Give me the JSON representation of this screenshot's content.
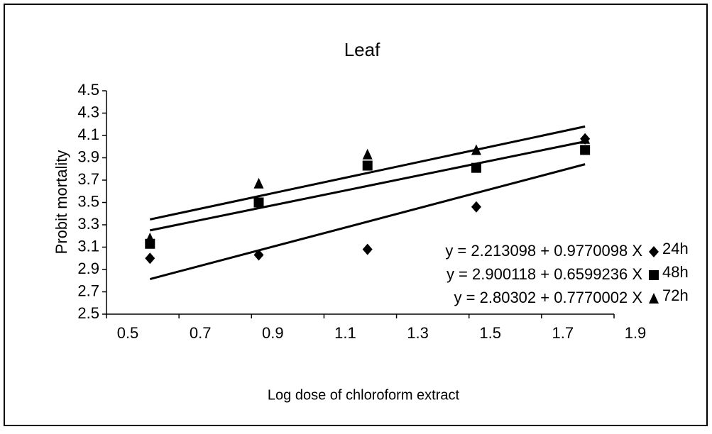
{
  "chart_data": {
    "type": "scatter",
    "title": "Leaf",
    "x_label": "Log dose of chloroform extract",
    "y_label": "Probit mortality",
    "xlim": [
      0.5,
      1.9
    ],
    "xticks": [
      0.5,
      0.7,
      0.9,
      1.1,
      1.3,
      1.5,
      1.7,
      1.9
    ],
    "ylim": [
      2.5,
      4.5
    ],
    "yticks": [
      2.5,
      2.7,
      2.9,
      3.1,
      3.3,
      3.5,
      3.7,
      3.9,
      4.1,
      4.3,
      4.5
    ],
    "trendline": true,
    "series": [
      {
        "name": "24h",
        "marker": "diamond",
        "color": "#000000",
        "equation": "y = 2.213098 + 0.9770098 X",
        "x": [
          0.62,
          0.92,
          1.22,
          1.52,
          1.82
        ],
        "values": [
          3.0,
          3.03,
          3.08,
          3.46,
          4.07
        ]
      },
      {
        "name": "48h",
        "marker": "square",
        "color": "#000000",
        "equation": "y = 2.900118 + 0.6599236 X",
        "x": [
          0.62,
          0.92,
          1.22,
          1.52,
          1.82
        ],
        "values": [
          3.13,
          3.5,
          3.83,
          3.81,
          3.97
        ]
      },
      {
        "name": "72h",
        "marker": "triangle",
        "color": "#000000",
        "equation": "y = 2.80302 + 0.7770002 X",
        "x": [
          0.62,
          0.92,
          1.22,
          1.52,
          1.82
        ],
        "values": [
          3.18,
          3.67,
          3.93,
          3.97,
          4.07
        ]
      }
    ]
  }
}
